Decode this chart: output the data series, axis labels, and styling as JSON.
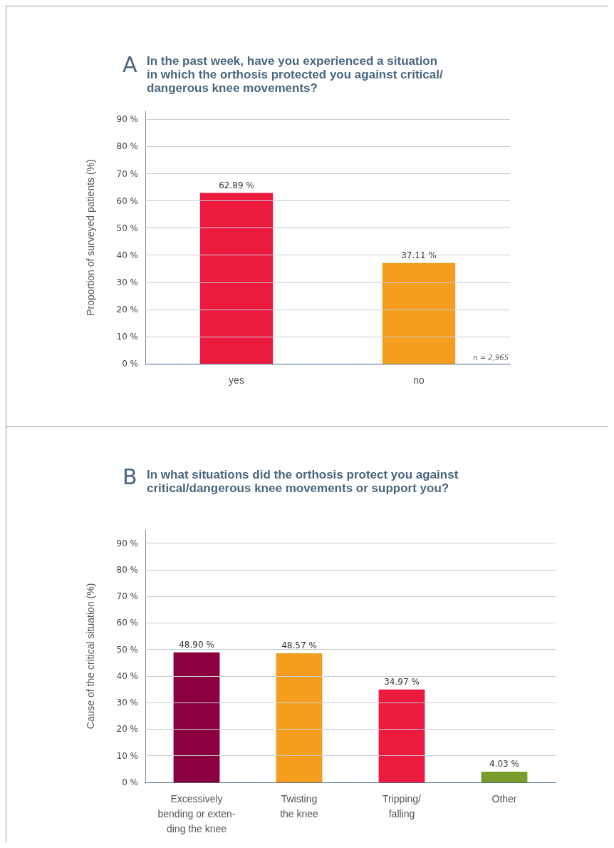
{
  "chart_data": [
    {
      "type": "bar",
      "title": "In the past week, have you experienced a situation\nin which the orthosis protected you against critical/\ndangerous knee movements?",
      "annotations": [
        "A",
        "n = 2,965"
      ],
      "ylabel": "Proportion of surveyed patients (%)",
      "categories": [
        "yes",
        "no"
      ],
      "values": [
        62.89,
        37.11
      ],
      "colors": [
        "#ec1a3f",
        "#f59d1f"
      ],
      "value_labels": [
        "62.89 %",
        "37.11 %"
      ],
      "ylim": [
        0,
        93
      ],
      "yticks": [
        {
          "value": 0,
          "label": "0 %"
        },
        {
          "value": 10,
          "label": "10 %"
        },
        {
          "value": 20,
          "label": "20 %"
        },
        {
          "value": 30,
          "label": "30 %"
        },
        {
          "value": 40,
          "label": "40 %"
        },
        {
          "value": 50,
          "label": "50 %"
        },
        {
          "value": 60,
          "label": "60 %"
        },
        {
          "value": 70,
          "label": "70 %"
        },
        {
          "value": 80,
          "label": "80 %"
        },
        {
          "value": 90,
          "label": "90 %"
        }
      ],
      "grid": "y"
    },
    {
      "type": "bar",
      "title": "In what situations did the orthosis protect you against\ncritical/dangerous knee movements or support you?",
      "annotations": [
        "B"
      ],
      "ylabel": "Cause of the critical situation (%)",
      "categories": [
        "Excessively\nbending or exten-\nding the knee",
        "Twisting\nthe knee",
        "Tripping/\nfalling",
        "Other"
      ],
      "values": [
        48.9,
        48.57,
        34.97,
        4.03
      ],
      "colors": [
        "#8b003f",
        "#f59d1f",
        "#ec1a3f",
        "#7a9c2a"
      ],
      "value_labels": [
        "48.90 %",
        "48.57 %",
        "34.97 %",
        "4.03 %"
      ],
      "ylim": [
        0,
        95
      ],
      "yticks": [
        {
          "value": 0,
          "label": "0 %"
        },
        {
          "value": 10,
          "label": "10 %"
        },
        {
          "value": 20,
          "label": "20 %"
        },
        {
          "value": 30,
          "label": "30 %"
        },
        {
          "value": 40,
          "label": "40 %"
        },
        {
          "value": 50,
          "label": "50 %"
        },
        {
          "value": 60,
          "label": "60 %"
        },
        {
          "value": 70,
          "label": "70 %"
        },
        {
          "value": 80,
          "label": "80 %"
        },
        {
          "value": 90,
          "label": "90 %"
        }
      ],
      "grid": "y"
    }
  ]
}
